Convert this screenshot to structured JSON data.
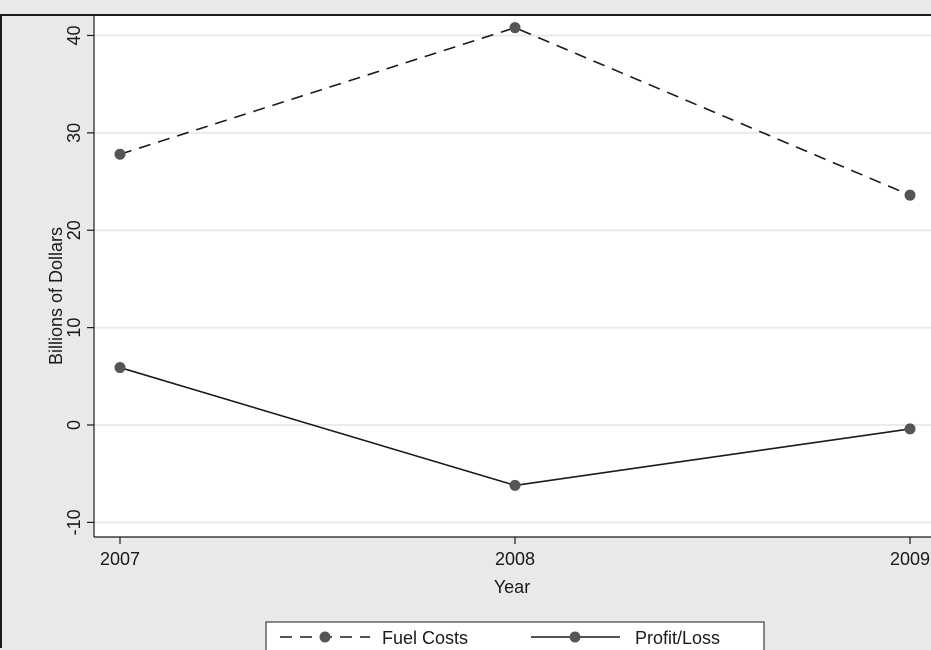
{
  "chart_data": {
    "type": "line",
    "title": "",
    "xlabel": "Year",
    "ylabel": "Billions of Dollars",
    "x": [
      2007,
      2008,
      2009
    ],
    "x_tick_labels": [
      "2007",
      "2008",
      "2009"
    ],
    "y_ticks": [
      -10,
      0,
      10,
      20,
      30,
      40
    ],
    "y_tick_labels": [
      "-10",
      "0",
      "10",
      "20",
      "30",
      "40"
    ],
    "ylim": [
      -11.5,
      42
    ],
    "xlim": [
      2007,
      2009
    ],
    "grid": true,
    "legend_position": "bottom",
    "series": [
      {
        "name": "Fuel Costs",
        "values": [
          27.8,
          40.8,
          23.6
        ],
        "line_style": "dashed",
        "color": "#1a1a1a"
      },
      {
        "name": "Profit/Loss",
        "values": [
          5.9,
          -6.2,
          -0.4
        ],
        "line_style": "solid",
        "color": "#1a1a1a"
      }
    ]
  }
}
